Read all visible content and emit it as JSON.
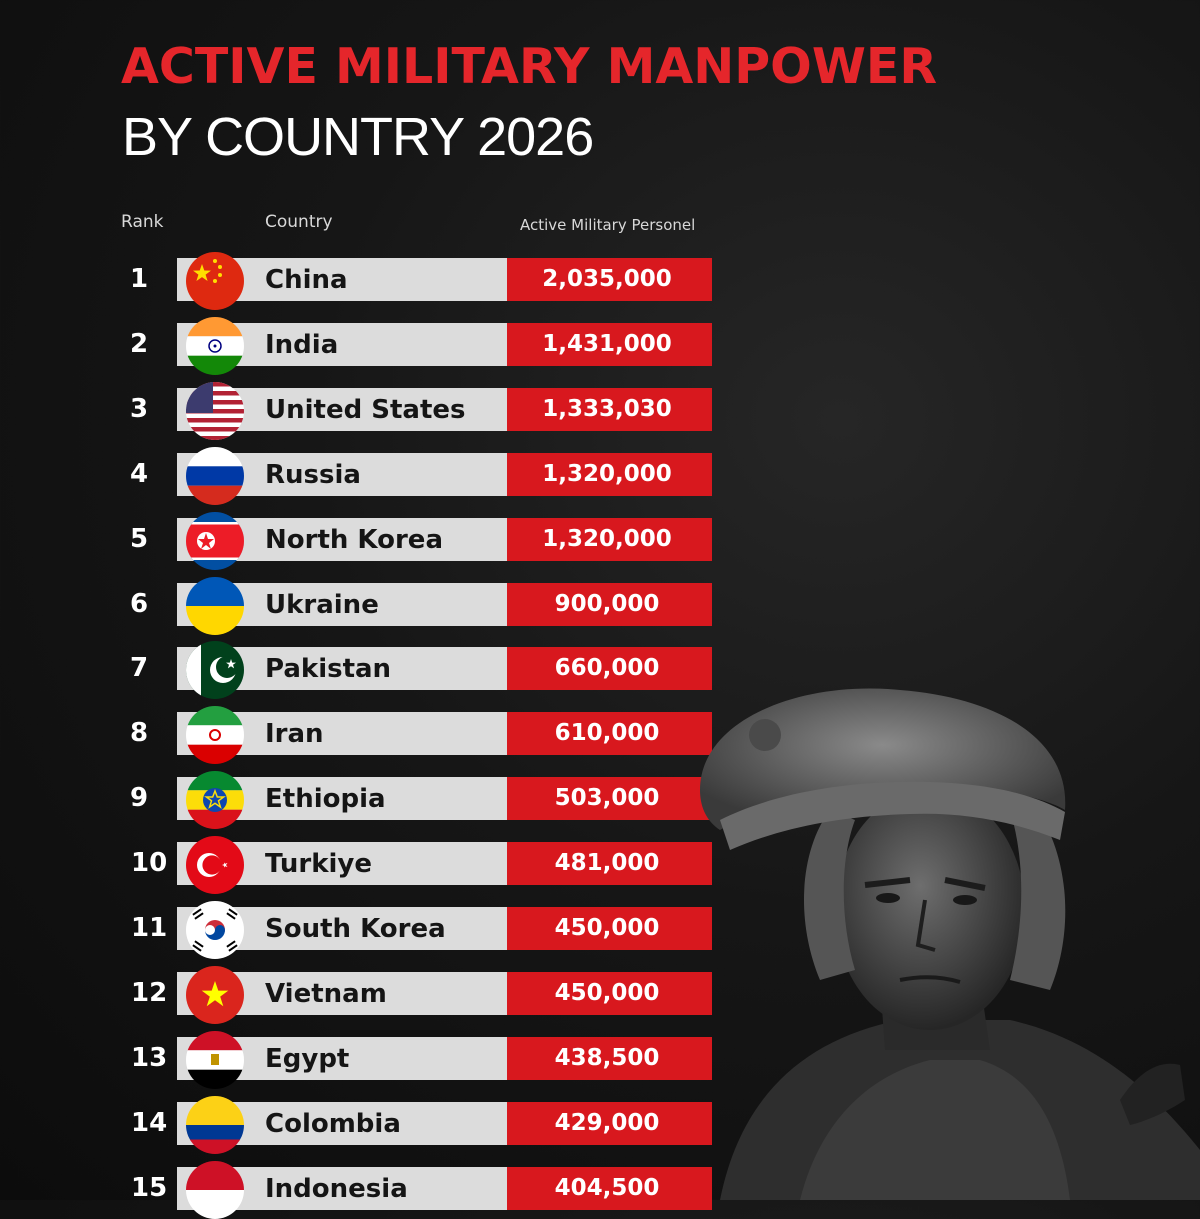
{
  "header": {
    "title_line1": "ACTIVE MILITARY MANPOWER",
    "title_line2": "BY COUNTRY 2026"
  },
  "columns": {
    "rank": "Rank",
    "country": "Country",
    "value": "Active Military Personel"
  },
  "chart_data": {
    "type": "table",
    "title": "ACTIVE MILITARY MANPOWER BY COUNTRY 2026",
    "columns": [
      "Rank",
      "Country",
      "Active Military Personel"
    ],
    "rows": [
      {
        "rank": "1",
        "country": "China",
        "value": "2,035,000",
        "flag": "china-flag-icon"
      },
      {
        "rank": "2",
        "country": "India",
        "value": "1,431,000",
        "flag": "india-flag-icon"
      },
      {
        "rank": "3",
        "country": "United States",
        "value": "1,333,030",
        "flag": "usa-flag-icon"
      },
      {
        "rank": "4",
        "country": "Russia",
        "value": "1,320,000",
        "flag": "russia-flag-icon"
      },
      {
        "rank": "5",
        "country": "North Korea",
        "value": "1,320,000",
        "flag": "north-korea-flag-icon"
      },
      {
        "rank": "6",
        "country": "Ukraine",
        "value": "900,000",
        "flag": "ukraine-flag-icon"
      },
      {
        "rank": "7",
        "country": "Pakistan",
        "value": "660,000",
        "flag": "pakistan-flag-icon"
      },
      {
        "rank": "8",
        "country": "Iran",
        "value": "610,000",
        "flag": "iran-flag-icon"
      },
      {
        "rank": "9",
        "country": "Ethiopia",
        "value": "503,000",
        "flag": "ethiopia-flag-icon"
      },
      {
        "rank": "10",
        "country": "Turkiye",
        "value": "481,000",
        "flag": "turkiye-flag-icon"
      },
      {
        "rank": "11",
        "country": "South Korea",
        "value": "450,000",
        "flag": "south-korea-flag-icon"
      },
      {
        "rank": "12",
        "country": "Vietnam",
        "value": "450,000",
        "flag": "vietnam-flag-icon"
      },
      {
        "rank": "13",
        "country": "Egypt",
        "value": "438,500",
        "flag": "egypt-flag-icon"
      },
      {
        "rank": "14",
        "country": "Colombia",
        "value": "429,000",
        "flag": "colombia-flag-icon"
      },
      {
        "rank": "15",
        "country": "Indonesia",
        "value": "404,500",
        "flag": "indonesia-flag-icon"
      }
    ]
  },
  "colors": {
    "title_red": "#e5262b",
    "value_bar": "#d8181e",
    "country_bar": "#dcdcdc",
    "background": "#161616"
  }
}
